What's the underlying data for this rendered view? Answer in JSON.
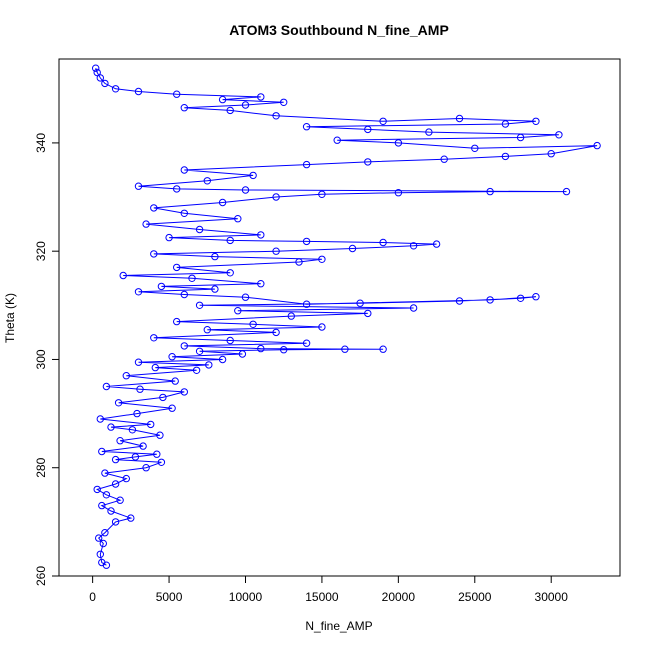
{
  "chart_data": {
    "type": "scatter",
    "title": "ATOM3 Southbound N_fine_AMP",
    "xlabel": "N_fine_AMP",
    "ylabel": "Theta (K)",
    "xlim": [
      -2200,
      34500
    ],
    "ylim": [
      260.0,
      355.5
    ],
    "xticks": [
      0,
      5000,
      10000,
      15000,
      20000,
      25000,
      30000
    ],
    "yticks": [
      260,
      280,
      300,
      320,
      340
    ],
    "style": {
      "point_color": "#0000ff",
      "line_color": "#0000ff",
      "marker": "open-circle",
      "connected": true,
      "grid": false,
      "legend": "none"
    },
    "series": [
      {
        "values": [
          [
            900,
            262
          ],
          [
            600,
            262.5
          ],
          [
            500,
            264
          ],
          [
            700,
            266
          ],
          [
            400,
            267
          ],
          [
            800,
            268
          ],
          [
            1500,
            270
          ],
          [
            2500,
            270.7
          ],
          [
            1200,
            272
          ],
          [
            600,
            273
          ],
          [
            1800,
            274
          ],
          [
            900,
            275
          ],
          [
            300,
            276
          ],
          [
            1500,
            277
          ],
          [
            2200,
            278
          ],
          [
            800,
            279
          ],
          [
            3500,
            280
          ],
          [
            4500,
            281
          ],
          [
            1500,
            281.5
          ],
          [
            2800,
            282
          ],
          [
            4200,
            282.5
          ],
          [
            600,
            283
          ],
          [
            3300,
            284
          ],
          [
            1800,
            285
          ],
          [
            4400,
            286
          ],
          [
            2600,
            287
          ],
          [
            1200,
            287.5
          ],
          [
            3800,
            288
          ],
          [
            500,
            289
          ],
          [
            2900,
            290
          ],
          [
            5200,
            291
          ],
          [
            1700,
            292
          ],
          [
            4600,
            293
          ],
          [
            6000,
            294
          ],
          [
            3100,
            294.5
          ],
          [
            900,
            295
          ],
          [
            5400,
            296
          ],
          [
            2200,
            297
          ],
          [
            6800,
            298
          ],
          [
            4100,
            298.5
          ],
          [
            7600,
            299
          ],
          [
            3000,
            299.5
          ],
          [
            8500,
            300
          ],
          [
            5200,
            300.5
          ],
          [
            9800,
            301
          ],
          [
            7000,
            301.5
          ],
          [
            12500,
            301.8
          ],
          [
            16500,
            301.9
          ],
          [
            19000,
            301.9
          ],
          [
            11000,
            302
          ],
          [
            6000,
            302.5
          ],
          [
            14000,
            303
          ],
          [
            9000,
            303.5
          ],
          [
            4000,
            304
          ],
          [
            12000,
            305
          ],
          [
            7500,
            305.5
          ],
          [
            15000,
            306
          ],
          [
            10500,
            306.5
          ],
          [
            5500,
            307
          ],
          [
            13000,
            308
          ],
          [
            18000,
            308.5
          ],
          [
            9500,
            309
          ],
          [
            21000,
            309.5
          ],
          [
            7000,
            310
          ],
          [
            17500,
            310.4
          ],
          [
            24000,
            310.8
          ],
          [
            28000,
            311.3
          ],
          [
            29000,
            311.6
          ],
          [
            26000,
            311
          ],
          [
            14000,
            310.2
          ],
          [
            10000,
            311.5
          ],
          [
            6000,
            312
          ],
          [
            3000,
            312.5
          ],
          [
            8000,
            313
          ],
          [
            4500,
            313.5
          ],
          [
            11000,
            314
          ],
          [
            6500,
            315
          ],
          [
            2000,
            315.5
          ],
          [
            9000,
            316
          ],
          [
            5500,
            317
          ],
          [
            13500,
            318
          ],
          [
            15000,
            318.5
          ],
          [
            8000,
            319
          ],
          [
            4000,
            319.5
          ],
          [
            12000,
            320
          ],
          [
            17000,
            320.5
          ],
          [
            21000,
            321
          ],
          [
            22500,
            321.3
          ],
          [
            19000,
            321.6
          ],
          [
            14000,
            321.8
          ],
          [
            9000,
            322
          ],
          [
            5000,
            322.5
          ],
          [
            11000,
            323
          ],
          [
            7000,
            324
          ],
          [
            3500,
            325
          ],
          [
            9500,
            326
          ],
          [
            6000,
            327
          ],
          [
            4000,
            328
          ],
          [
            8500,
            329
          ],
          [
            12000,
            330
          ],
          [
            15000,
            330.5
          ],
          [
            20000,
            330.8
          ],
          [
            26000,
            331
          ],
          [
            31000,
            331
          ],
          [
            10000,
            331.3
          ],
          [
            5500,
            331.5
          ],
          [
            3000,
            332
          ],
          [
            7500,
            333
          ],
          [
            10500,
            334
          ],
          [
            6000,
            335
          ],
          [
            14000,
            336
          ],
          [
            18000,
            336.5
          ],
          [
            23000,
            337
          ],
          [
            27000,
            337.5
          ],
          [
            30000,
            338
          ],
          [
            33000,
            339.5
          ],
          [
            25000,
            339
          ],
          [
            20000,
            340
          ],
          [
            16000,
            340.5
          ],
          [
            28000,
            341
          ],
          [
            30500,
            341.5
          ],
          [
            22000,
            342
          ],
          [
            18000,
            342.5
          ],
          [
            14000,
            343
          ],
          [
            27000,
            343.5
          ],
          [
            29000,
            344
          ],
          [
            24000,
            344.5
          ],
          [
            19000,
            344
          ],
          [
            12000,
            345
          ],
          [
            9000,
            346
          ],
          [
            6000,
            346.5
          ],
          [
            10000,
            347
          ],
          [
            12500,
            347.5
          ],
          [
            8500,
            348
          ],
          [
            11000,
            348.5
          ],
          [
            5500,
            349
          ],
          [
            3000,
            349.5
          ],
          [
            1500,
            350
          ],
          [
            800,
            351
          ],
          [
            500,
            352
          ],
          [
            300,
            353
          ],
          [
            200,
            353.8
          ]
        ]
      }
    ]
  }
}
